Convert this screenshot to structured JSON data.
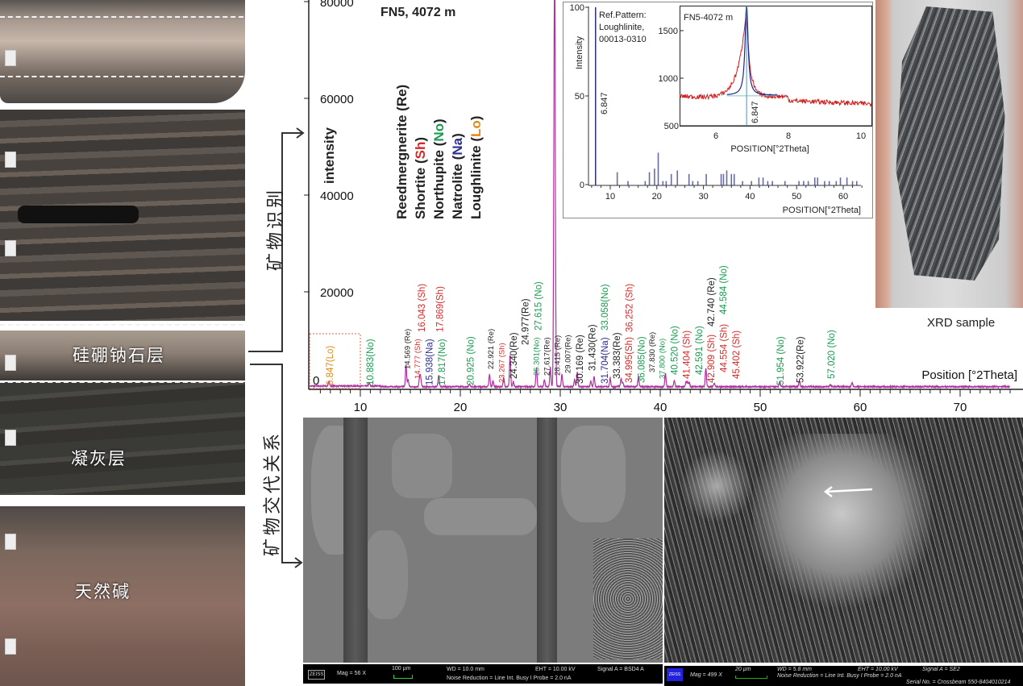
{
  "core_panel": {
    "labels": [
      "硅硼钠石层",
      "凝灰层",
      "天然碱"
    ]
  },
  "annotations": {
    "identification": "矿物识别",
    "replacement": "矿物交代关系"
  },
  "xrd_sample": {
    "caption": "XRD sample"
  },
  "colors": {
    "Re": "#222222",
    "Sh": "#d42a2a",
    "No": "#1a9a50",
    "Na": "#2a2f8a",
    "Lo": "#e08a1a",
    "pattern": "#b030a0",
    "ref_stick": "#2a2f7a",
    "inset_red": "#d21e1e",
    "inset_fit": "#1c2a8a"
  },
  "chart_data": [
    {
      "type": "line",
      "title": "FN5, 4072 m",
      "xlabel": "Position [°2Theta]",
      "ylabel": "intensity",
      "xlim": [
        5,
        75
      ],
      "ylim": [
        0,
        80000
      ],
      "xticks": [
        10,
        20,
        30,
        40,
        50,
        60,
        70
      ],
      "yticks": [
        0,
        20000,
        40000,
        60000,
        80000
      ],
      "ytick_labels": [
        "0",
        "20000",
        "40000",
        "60000",
        "80000"
      ],
      "grid": false,
      "legend": [
        {
          "name": "Reedmergnerite",
          "code": "Re"
        },
        {
          "name": "Shortite",
          "code": "Sh"
        },
        {
          "name": "Northupite",
          "code": "No"
        },
        {
          "name": "Natrolite",
          "code": "Na"
        },
        {
          "name": "Loughlinite",
          "code": "Lo"
        }
      ],
      "highlight_box_xrange": [
        5,
        10
      ],
      "peaks": [
        {
          "x": 6.847,
          "y": 1000,
          "label": "6.847(Lo)",
          "mineral": "Lo"
        },
        {
          "x": 10.883,
          "y": 700,
          "label": "10.883(No)",
          "mineral": "No"
        },
        {
          "x": 14.569,
          "y": 4500,
          "label": "14.569 (Re)",
          "mineral": "Re"
        },
        {
          "x": 14.777,
          "y": 1500,
          "label": "14.777 (Sh)",
          "mineral": "Sh"
        },
        {
          "x": 15.938,
          "y": 2200,
          "label": "15.938(Na)",
          "mineral": "Na"
        },
        {
          "x": 16.043,
          "y": 1500,
          "label": "16.043 (Sh)",
          "mineral": "Sh"
        },
        {
          "x": 17.817,
          "y": 1400,
          "label": "17.817(No)",
          "mineral": "No"
        },
        {
          "x": 17.869,
          "y": 1200,
          "label": "17.869(Sh)",
          "mineral": "Sh"
        },
        {
          "x": 20.925,
          "y": 600,
          "label": "20.925 (No)",
          "mineral": "No"
        },
        {
          "x": 22.921,
          "y": 2500,
          "label": "22.921 (Re)",
          "mineral": "Re"
        },
        {
          "x": 23.267,
          "y": 1200,
          "label": "23.267 (Sh)",
          "mineral": "Sh"
        },
        {
          "x": 24.34,
          "y": 1800,
          "label": "24.340(Re)",
          "mineral": "Re"
        },
        {
          "x": 24.977,
          "y": 6500,
          "label": "24.977(Re)",
          "mineral": "Re"
        },
        {
          "x": 25.301,
          "y": 1000,
          "label": "25.301(No)",
          "mineral": "No"
        },
        {
          "x": 27.617,
          "y": 1800,
          "label": "27.617(Re)",
          "mineral": "Re"
        },
        {
          "x": 27.615,
          "y": 2200,
          "label": "27.615 (No)",
          "mineral": "No"
        },
        {
          "x": 28.415,
          "y": 1500,
          "label": "28.415 (Re)",
          "mineral": "Re"
        },
        {
          "x": 29.007,
          "y": 4000,
          "label": "29.007(Re)",
          "mineral": "Re"
        },
        {
          "x": 29.43,
          "y": 90000,
          "label": "",
          "mineral": "Re"
        },
        {
          "x": 30.169,
          "y": 2500,
          "label": "30.169 (Re)",
          "mineral": "Re"
        },
        {
          "x": 31.43,
          "y": 1500,
          "label": "31.430(Re)",
          "mineral": "Re"
        },
        {
          "x": 31.704,
          "y": 3000,
          "label": "31.704(Na)",
          "mineral": "Na"
        },
        {
          "x": 33.058,
          "y": 1200,
          "label": "33.058(No)",
          "mineral": "No"
        },
        {
          "x": 33.383,
          "y": 2200,
          "label": "33.383(Re)",
          "mineral": "Re"
        },
        {
          "x": 34.995,
          "y": 1800,
          "label": "34.995(Sh)",
          "mineral": "Sh"
        },
        {
          "x": 36.085,
          "y": 1700,
          "label": "36.085(No)",
          "mineral": "No"
        },
        {
          "x": 36.252,
          "y": 900,
          "label": "36.252 (Sh)",
          "mineral": "Sh"
        },
        {
          "x": 37.83,
          "y": 1400,
          "label": "37.830 (Re)",
          "mineral": "Re"
        },
        {
          "x": 37.8,
          "y": 800,
          "label": "37.800 (No)",
          "mineral": "No"
        },
        {
          "x": 40.52,
          "y": 2700,
          "label": "40.520 (No)",
          "mineral": "No"
        },
        {
          "x": 41.404,
          "y": 1300,
          "label": "41.404 (Sh)",
          "mineral": "Sh"
        },
        {
          "x": 42.591,
          "y": 1000,
          "label": "42.591 (No)",
          "mineral": "No"
        },
        {
          "x": 42.74,
          "y": 900,
          "label": "42.740 (Re)",
          "mineral": "Re"
        },
        {
          "x": 42.909,
          "y": 800,
          "label": "42.909 (Sh)",
          "mineral": "Sh"
        },
        {
          "x": 44.554,
          "y": 2800,
          "label": "44.554 (Sh)",
          "mineral": "Sh"
        },
        {
          "x": 44.584,
          "y": 1200,
          "label": "44.584 (No)",
          "mineral": "No"
        },
        {
          "x": 45.402,
          "y": 800,
          "label": "45.402 (Sh)",
          "mineral": "Sh"
        },
        {
          "x": 51.954,
          "y": 1100,
          "label": "51.954 (No)",
          "mineral": "No"
        },
        {
          "x": 53.922,
          "y": 1300,
          "label": "53.922(Re)",
          "mineral": "Re"
        },
        {
          "x": 57.02,
          "y": 500,
          "label": "57.020 (No)",
          "mineral": "No"
        },
        {
          "x": 59.2,
          "y": 900,
          "label": "",
          "mineral": "Re"
        }
      ]
    },
    {
      "type": "bar",
      "title": "Ref.Pattern:\nLoughlinite,\n00013-0310",
      "title_lines": [
        "Ref.Pattern:",
        "Loughlinite,",
        "00013-0310"
      ],
      "xlabel": "POSITION[°2Theta]",
      "ylabel": "Intensity",
      "xlim": [
        5,
        64
      ],
      "ylim": [
        0,
        100
      ],
      "xticks": [
        10,
        20,
        30,
        40,
        50,
        60
      ],
      "yticks": [
        0,
        50,
        100
      ],
      "main_peak_label": "6.847",
      "sticks": [
        [
          6.847,
          100
        ],
        [
          11.5,
          7
        ],
        [
          13.8,
          2
        ],
        [
          17.5,
          2
        ],
        [
          18.4,
          7
        ],
        [
          19.5,
          9
        ],
        [
          20.3,
          18
        ],
        [
          21.3,
          2
        ],
        [
          22,
          2
        ],
        [
          23.1,
          6
        ],
        [
          24.4,
          8
        ],
        [
          26.9,
          6
        ],
        [
          27.7,
          2
        ],
        [
          28.8,
          2
        ],
        [
          30.6,
          6
        ],
        [
          33.8,
          6
        ],
        [
          34.3,
          6
        ],
        [
          35,
          8
        ],
        [
          36,
          6
        ],
        [
          36.6,
          6
        ],
        [
          38.4,
          2
        ],
        [
          40.3,
          2
        ],
        [
          41.9,
          4
        ],
        [
          42.8,
          4
        ],
        [
          43.8,
          2
        ],
        [
          44.8,
          2
        ],
        [
          47.5,
          2
        ],
        [
          50.5,
          2
        ],
        [
          51.5,
          2
        ],
        [
          52.5,
          2
        ],
        [
          53.9,
          4
        ],
        [
          54.5,
          4
        ],
        [
          56,
          2
        ],
        [
          57,
          2
        ],
        [
          58.5,
          2
        ],
        [
          59.4,
          4
        ],
        [
          60.8,
          4
        ],
        [
          62,
          2
        ],
        [
          62.9,
          2
        ]
      ]
    },
    {
      "type": "line",
      "title": "FN5-4072 m",
      "xlabel": "POSITION[°2Theta]",
      "xlim": [
        5,
        10.3
      ],
      "ylim": [
        500,
        1750
      ],
      "xticks": [
        6,
        8,
        10
      ],
      "yticks": [
        500,
        1000,
        1500
      ],
      "peak_label": "6.847",
      "series": [
        {
          "role": "measured",
          "peak_x": 6.847,
          "peak_y": 1780,
          "baseline_start": 830,
          "baseline_end": 750
        },
        {
          "role": "fit",
          "peak_x": 6.847,
          "peak_y": 1780,
          "baseline": 820
        }
      ]
    }
  ],
  "sem_bse": {
    "logo": "ZEISS",
    "mag": "Mag =     56 X",
    "scale": "100 µm",
    "wd": "WD = 10.0 mm",
    "eht": "EHT = 10.00 kV",
    "signal": "Signal A = BSD4 A",
    "noise": "Noise Reduction = Line Int. Busy I Probe =    2.0 nA"
  },
  "sem_se": {
    "logo": "ZEISS",
    "mag": "Mag =    499 X",
    "scale": "20 µm",
    "wd": "WD = 5.8 mm",
    "eht": "EHT = 10.00 kV",
    "signal": "Signal A = SE2",
    "noise": "Noise Reduction = Line Int. Busy I Probe =    2.0 nA",
    "serial": "Serial No. = Crossbeam 550-8404010214"
  }
}
